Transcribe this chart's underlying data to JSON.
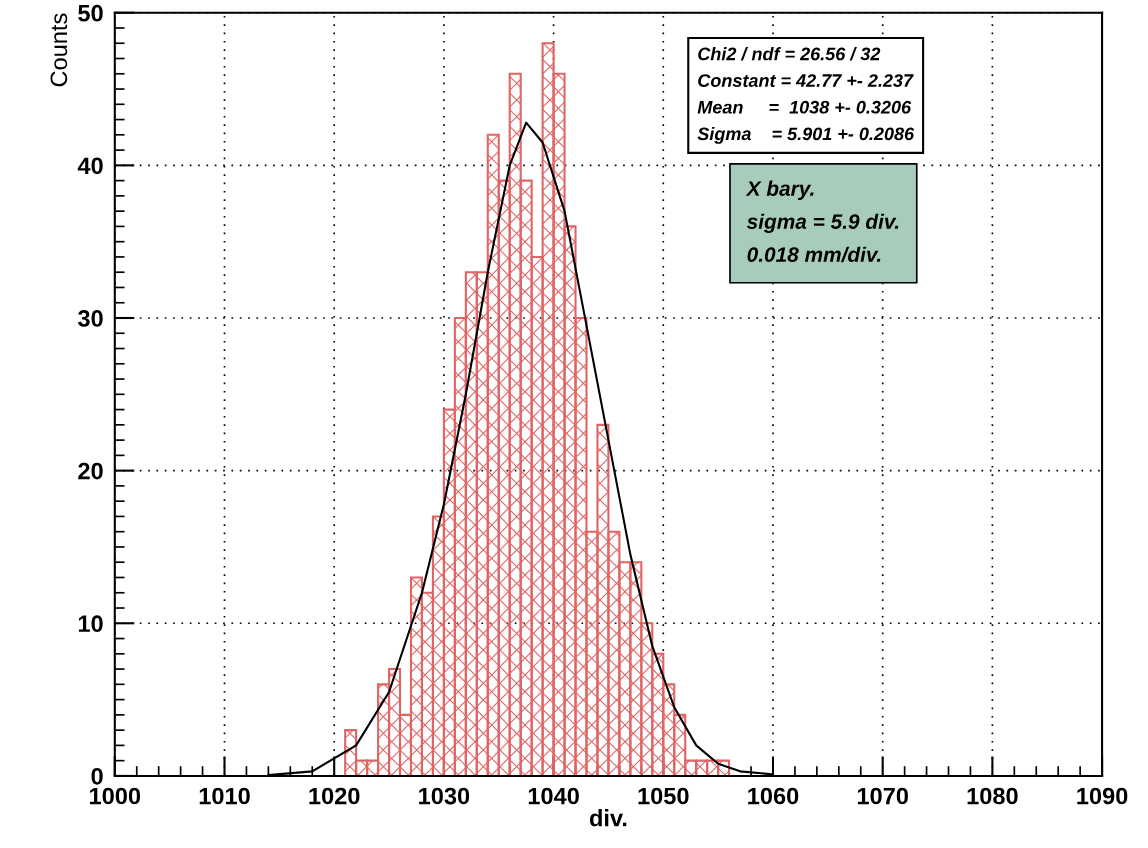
{
  "chart_data": {
    "type": "histogram",
    "xlabel": "div.",
    "ylabel": "Counts",
    "xlim": [
      1000,
      1090
    ],
    "xticks": [
      1000,
      1010,
      1020,
      1030,
      1040,
      1050,
      1060,
      1070,
      1080,
      1090
    ],
    "ylim": [
      0,
      50
    ],
    "yticks": [
      0,
      10,
      20,
      30,
      40,
      50
    ],
    "grid": true,
    "series": [
      {
        "color": "#e06464",
        "bins": [
          1021,
          1022,
          1023,
          1024,
          1025,
          1026,
          1027,
          1028,
          1029,
          1030,
          1031,
          1032,
          1033,
          1034,
          1035,
          1036,
          1037,
          1038,
          1039,
          1040,
          1041,
          1042,
          1043,
          1044,
          1045,
          1046,
          1047,
          1048,
          1049,
          1050,
          1051,
          1052,
          1053,
          1054,
          1055,
          1056
        ],
        "values": [
          3,
          1,
          1,
          6,
          7,
          4,
          13,
          12,
          17,
          24,
          30,
          33,
          33,
          42,
          39,
          46,
          39,
          34,
          48,
          46,
          36,
          30,
          16,
          23,
          16,
          14,
          14,
          10,
          8,
          6,
          4,
          1,
          1,
          1,
          1
        ]
      },
      {
        "type": "line",
        "color": "#000000",
        "x": [
          1014,
          1018,
          1022,
          1025,
          1028,
          1030,
          1032,
          1034,
          1036,
          1037.5,
          1039,
          1041,
          1043,
          1045,
          1047,
          1049,
          1051,
          1053,
          1055,
          1057,
          1060
        ],
        "values": [
          0.05,
          0.3,
          2,
          5.5,
          12,
          17.8,
          25,
          33,
          40,
          42.8,
          41.5,
          37,
          29.5,
          22,
          14.5,
          8.5,
          4.5,
          2,
          0.8,
          0.3,
          0.1
        ]
      }
    ],
    "annotations": [
      "Chi2 / ndf = 26.56 / 32\nConstant = 42.77 +- 2.237\nMean     =  1038 +- 0.3206\nSigma    = 5.901 +- 0.2086",
      "X bary.\nsigma = 5.9 div.\n0.018 mm/div."
    ]
  }
}
